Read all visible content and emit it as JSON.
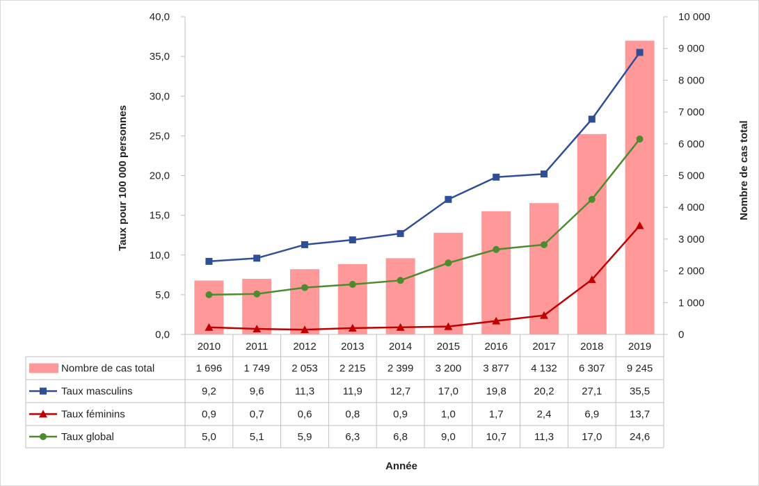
{
  "chart_data": {
    "type": "bar",
    "categories": [
      "2010",
      "2011",
      "2012",
      "2013",
      "2014",
      "2015",
      "2016",
      "2017",
      "2018",
      "2019"
    ],
    "xlabel": "Année",
    "ylabel": "Taux pour 100 000 personnes",
    "y2label": "Nombre de cas total",
    "ylim": [
      0,
      40
    ],
    "y2lim": [
      0,
      10000
    ],
    "yticks": [
      "0,0",
      "5,0",
      "10,0",
      "15,0",
      "20,0",
      "25,0",
      "30,0",
      "35,0",
      "40,0"
    ],
    "y2ticks": [
      "0",
      "1 000",
      "2 000",
      "3 000",
      "4 000",
      "5 000",
      "6 000",
      "7 000",
      "8 000",
      "9 000",
      "10 000"
    ],
    "grid": false,
    "legend": "data-table",
    "series": [
      {
        "name": "Nombre de cas total",
        "type": "bar",
        "axis": "right",
        "color": "#ff9999",
        "values": [
          1696,
          1749,
          2053,
          2215,
          2399,
          3200,
          3877,
          4132,
          6307,
          9245
        ],
        "labels": [
          "1 696",
          "1 749",
          "2 053",
          "2 215",
          "2 399",
          "3 200",
          "3 877",
          "4 132",
          "6 307",
          "9 245"
        ]
      },
      {
        "name": "Taux masculins",
        "type": "line",
        "axis": "left",
        "marker": "square",
        "color": "#2e4f96",
        "values": [
          9.2,
          9.6,
          11.3,
          11.9,
          12.7,
          17.0,
          19.8,
          20.2,
          27.1,
          35.5
        ],
        "labels": [
          "9,2",
          "9,6",
          "11,3",
          "11,9",
          "12,7",
          "17,0",
          "19,8",
          "20,2",
          "27,1",
          "35,5"
        ]
      },
      {
        "name": "Taux féminins",
        "type": "line",
        "axis": "left",
        "marker": "triangle",
        "color": "#c00000",
        "values": [
          0.9,
          0.7,
          0.6,
          0.8,
          0.9,
          1.0,
          1.7,
          2.4,
          6.9,
          13.7
        ],
        "labels": [
          "0,9",
          "0,7",
          "0,6",
          "0,8",
          "0,9",
          "1,0",
          "1,7",
          "2,4",
          "6,9",
          "13,7"
        ]
      },
      {
        "name": "Taux global",
        "type": "line",
        "axis": "left",
        "marker": "circle",
        "color": "#4e8a2e",
        "values": [
          5.0,
          5.1,
          5.9,
          6.3,
          6.8,
          9.0,
          10.7,
          11.3,
          17.0,
          24.6
        ],
        "labels": [
          "5,0",
          "5,1",
          "5,9",
          "6,3",
          "6,8",
          "9,0",
          "10,7",
          "11,3",
          "17,0",
          "24,6"
        ]
      }
    ]
  }
}
